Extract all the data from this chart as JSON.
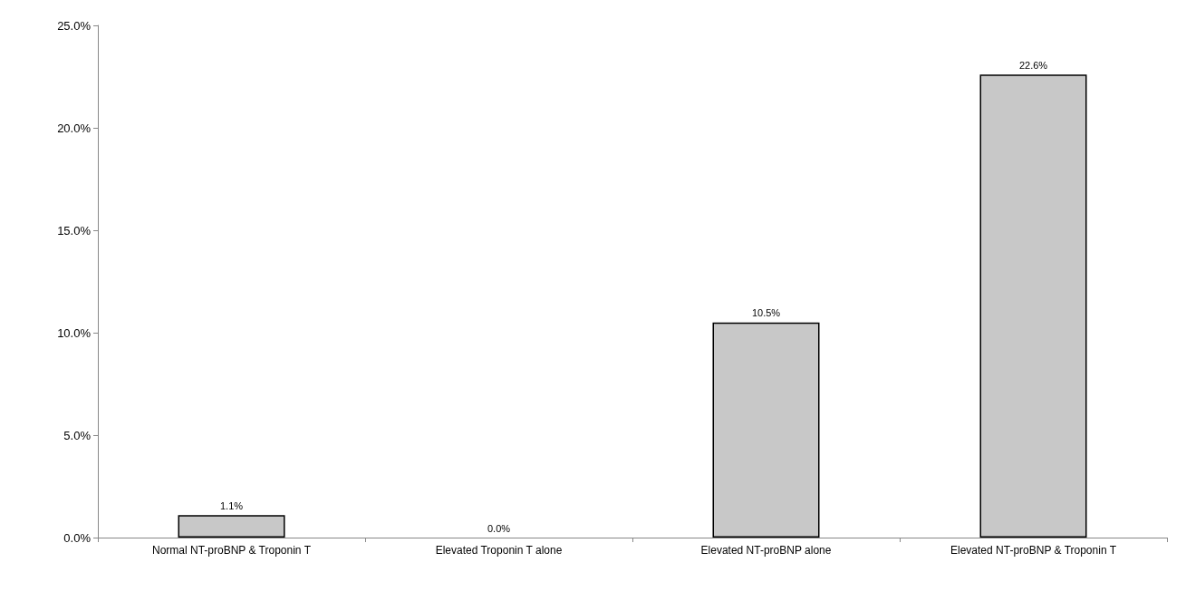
{
  "chart_data": {
    "type": "bar",
    "categories": [
      "Normal NT-proBNP & Troponin T",
      "Elevated Troponin T alone",
      "Elevated NT-proBNP alone",
      "Elevated NT-proBNP & Troponin T"
    ],
    "values": [
      1.1,
      0.0,
      10.5,
      22.6
    ],
    "value_labels": [
      "1.1%",
      "0.0%",
      "10.5%",
      "22.6%"
    ],
    "color": "#c8c8c8",
    "ylim": [
      0,
      25
    ],
    "yticks": [
      {
        "value": 0,
        "label": "0.0%"
      },
      {
        "value": 5,
        "label": "5.0%"
      },
      {
        "value": 10,
        "label": "10.0%"
      },
      {
        "value": 15,
        "label": "15.0%"
      },
      {
        "value": 20,
        "label": "20.0%"
      },
      {
        "value": 25,
        "label": "25.0%"
      }
    ],
    "grid": false
  }
}
